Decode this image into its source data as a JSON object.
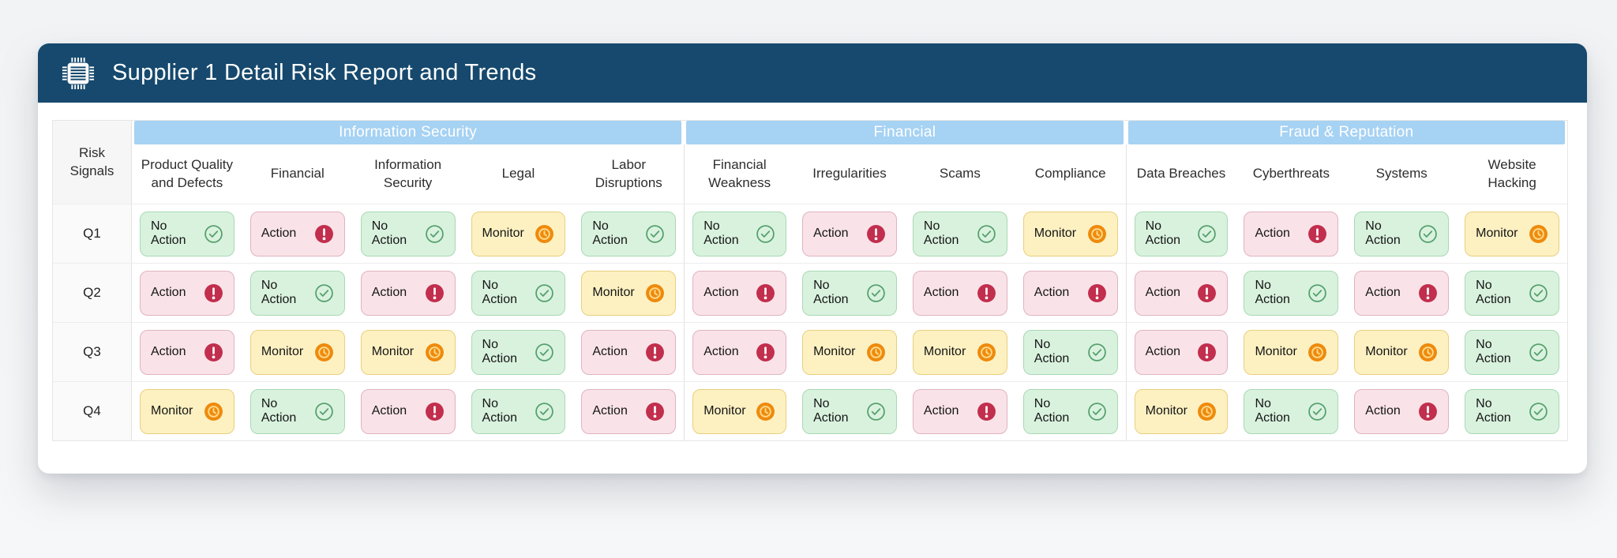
{
  "header": {
    "title": "Supplier 1 Detail Risk Report and Trends",
    "icon": "chip-icon",
    "bg_color": "#16496d"
  },
  "table": {
    "corner_label": "Risk Signals",
    "group_header_bg": "#a6d2f3",
    "groups": [
      {
        "label": "Information Security",
        "columns": [
          "Product Quality and Defects",
          "Financial",
          "Information Security",
          "Legal",
          "Labor Disruptions"
        ]
      },
      {
        "label": "Financial",
        "columns": [
          "Financial Weakness",
          "Irregularities",
          "Scams",
          "Compliance"
        ]
      },
      {
        "label": "Fraud & Reputation",
        "columns": [
          "Data Breaches",
          "Cyberthreats",
          "Systems",
          "Website Hacking"
        ]
      }
    ],
    "statuses": {
      "no_action": {
        "label": "No Action",
        "icon": "check-circle-icon",
        "icon_color": "#55a06d",
        "bg": "#d9f2de"
      },
      "action": {
        "label": "Action",
        "icon": "alert-circle-icon",
        "icon_color": "#c22e4d",
        "bg": "#f9e3e8"
      },
      "monitor": {
        "label": "Monitor",
        "icon": "clock-circle-icon",
        "icon_color": "#ee8a0c",
        "bg": "#fdf1c2"
      }
    },
    "rows": [
      {
        "label": "Q1",
        "cells": [
          "no_action",
          "action",
          "no_action",
          "monitor",
          "no_action",
          "no_action",
          "action",
          "no_action",
          "monitor",
          "no_action",
          "action",
          "no_action",
          "monitor"
        ]
      },
      {
        "label": "Q2",
        "cells": [
          "action",
          "no_action",
          "action",
          "no_action",
          "monitor",
          "action",
          "no_action",
          "action",
          "action",
          "action",
          "no_action",
          "action",
          "no_action"
        ]
      },
      {
        "label": "Q3",
        "cells": [
          "action",
          "monitor",
          "monitor",
          "no_action",
          "action",
          "action",
          "monitor",
          "monitor",
          "no_action",
          "action",
          "monitor",
          "monitor",
          "no_action"
        ]
      },
      {
        "label": "Q4",
        "cells": [
          "monitor",
          "no_action",
          "action",
          "no_action",
          "action",
          "monitor",
          "no_action",
          "action",
          "no_action",
          "monitor",
          "no_action",
          "action",
          "no_action"
        ]
      }
    ]
  },
  "colors": {
    "page_bg": "#f4f5f6",
    "card_bg": "#ffffff",
    "header_bg": "#16496d",
    "group_header_bg": "#a6d2f3",
    "no_action_bg": "#d9f2de",
    "action_bg": "#f9e3e8",
    "monitor_bg": "#fdf1c2",
    "no_action_icon": "#55a06d",
    "action_icon": "#c22e4d",
    "monitor_icon": "#ee8a0c"
  }
}
